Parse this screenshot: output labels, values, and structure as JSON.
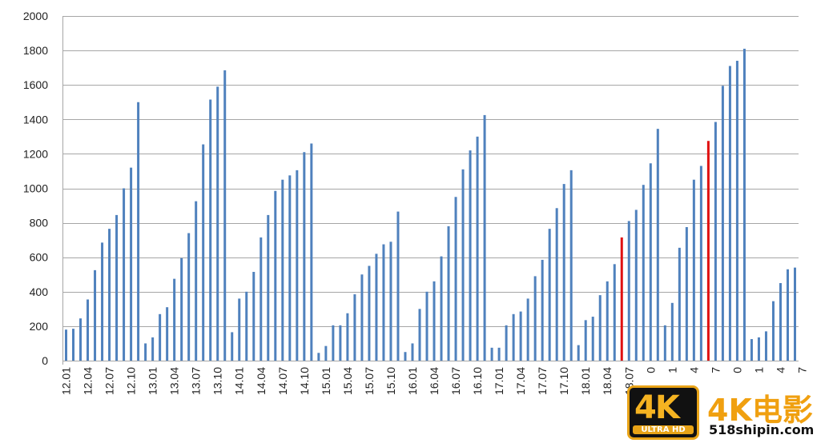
{
  "chart_data": {
    "type": "bar",
    "ylim": [
      0,
      2000
    ],
    "yticks": [
      "0",
      "200",
      "400",
      "600",
      "800",
      "1000",
      "1200",
      "1400",
      "1600",
      "1800",
      "2000"
    ],
    "grid": true,
    "x_tick_labels": [
      "12.01",
      "12.04",
      "12.07",
      "12.10",
      "13.01",
      "13.04",
      "13.07",
      "13.10",
      "14.01",
      "14.04",
      "14.07",
      "14.10",
      "15.01",
      "15.04",
      "15.07",
      "15.10",
      "16.01",
      "16.04",
      "16.07",
      "16.10",
      "17.01",
      "17.04",
      "17.07",
      "17.10",
      "18.01",
      "18.04",
      "18.07",
      "0",
      "1",
      "4",
      "7",
      "0",
      "1",
      "4",
      "7"
    ],
    "x_tick_positions": [
      0,
      3,
      6,
      9,
      12,
      15,
      18,
      21,
      24,
      27,
      30,
      33,
      36,
      39,
      42,
      45,
      48,
      51,
      54,
      57,
      60,
      63,
      66,
      69,
      72,
      75,
      78,
      81,
      84,
      87,
      90,
      93,
      96,
      99,
      102
    ],
    "values": [
      180,
      185,
      245,
      355,
      525,
      685,
      765,
      845,
      1000,
      1120,
      1500,
      100,
      135,
      270,
      310,
      475,
      595,
      740,
      925,
      1255,
      1515,
      1590,
      1685,
      165,
      360,
      400,
      515,
      715,
      845,
      985,
      1050,
      1075,
      1105,
      1210,
      1260,
      45,
      85,
      205,
      205,
      275,
      385,
      500,
      550,
      620,
      675,
      690,
      865,
      50,
      100,
      300,
      400,
      460,
      605,
      780,
      950,
      1110,
      1220,
      1300,
      1425,
      75,
      75,
      205,
      270,
      285,
      360,
      490,
      585,
      765,
      885,
      1025,
      1105,
      90,
      235,
      255,
      380,
      460,
      560,
      715,
      810,
      875,
      1020,
      1145,
      1345,
      205,
      335,
      655,
      775,
      1050,
      1130,
      1275,
      1385,
      1595,
      1710,
      1740,
      1810,
      125,
      135,
      170,
      345,
      450,
      530,
      540
    ],
    "highlight_indices": [
      77,
      89,
      102
    ],
    "bar_color": "#4f81bd",
    "highlight_color": "#e01010",
    "grid_color": "#a6a6a6"
  },
  "watermark": {
    "badge_4k": "4K",
    "badge_sub": "ULTRA HD",
    "title": "4K电影",
    "url": "518shipin.com"
  }
}
